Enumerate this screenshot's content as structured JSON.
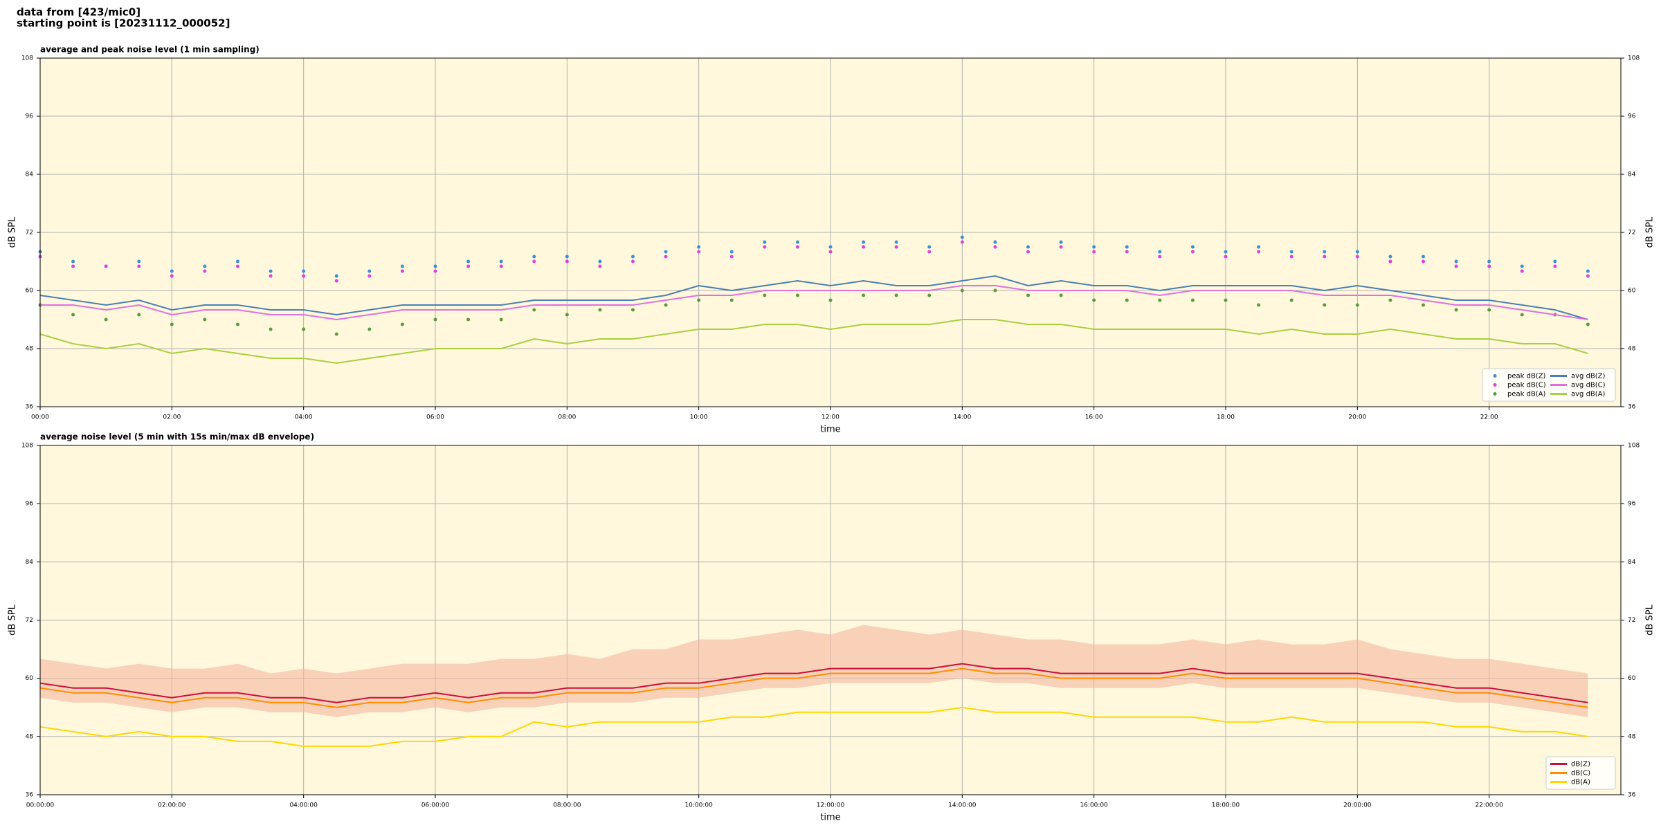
{
  "suptitle": [
    "data from [423/mic0]",
    "starting point is [20231112_000052]"
  ],
  "chart_data": [
    {
      "type": "line",
      "title": "average and peak noise level (1 min sampling)",
      "xlabel": "time",
      "ylabel": "dB SPL",
      "x": [
        0,
        0.5,
        1,
        1.5,
        2,
        2.5,
        3,
        3.5,
        4,
        4.5,
        5,
        5.5,
        6,
        6.5,
        7,
        7.5,
        8,
        8.5,
        9,
        9.5,
        10,
        10.5,
        11,
        11.5,
        12,
        12.5,
        13,
        13.5,
        14,
        14.5,
        15,
        15.5,
        16,
        16.5,
        17,
        17.5,
        18,
        18.5,
        19,
        19.5,
        20,
        20.5,
        21,
        21.5,
        22,
        22.5,
        23,
        23.5
      ],
      "xlim": [
        0,
        24
      ],
      "xticks": [
        {
          "value": 0,
          "label": "00:00"
        },
        {
          "value": 2,
          "label": "02:00"
        },
        {
          "value": 4,
          "label": "04:00"
        },
        {
          "value": 6,
          "label": "06:00"
        },
        {
          "value": 8,
          "label": "08:00"
        },
        {
          "value": 10,
          "label": "10:00"
        },
        {
          "value": 12,
          "label": "12:00"
        },
        {
          "value": 14,
          "label": "14:00"
        },
        {
          "value": 16,
          "label": "16:00"
        },
        {
          "value": 18,
          "label": "18:00"
        },
        {
          "value": 20,
          "label": "20:00"
        },
        {
          "value": 22,
          "label": "22:00"
        }
      ],
      "ylim": [
        36,
        108
      ],
      "yticks": [
        36,
        48,
        60,
        72,
        84,
        96,
        108
      ],
      "grid": true,
      "legend": "lower right",
      "legend_columns": 2,
      "series": [
        {
          "name": "peak dB(Z)",
          "color": "#3a8fd8",
          "style": "dots",
          "values": [
            68,
            66,
            65,
            66,
            64,
            65,
            66,
            64,
            64,
            63,
            64,
            65,
            65,
            66,
            66,
            67,
            67,
            66,
            67,
            68,
            69,
            68,
            70,
            70,
            69,
            70,
            70,
            69,
            71,
            70,
            69,
            70,
            69,
            69,
            68,
            69,
            68,
            69,
            68,
            68,
            68,
            67,
            67,
            66,
            66,
            65,
            66,
            64
          ]
        },
        {
          "name": "peak dB(C)",
          "color": "#e040e0",
          "style": "dots",
          "values": [
            67,
            65,
            65,
            65,
            63,
            64,
            65,
            63,
            63,
            62,
            63,
            64,
            64,
            65,
            65,
            66,
            66,
            65,
            66,
            67,
            68,
            67,
            69,
            69,
            68,
            69,
            69,
            68,
            70,
            69,
            68,
            69,
            68,
            68,
            67,
            68,
            67,
            68,
            67,
            67,
            67,
            66,
            66,
            65,
            65,
            64,
            65,
            63
          ]
        },
        {
          "name": "peak dB(A)",
          "color": "#5a9a40",
          "style": "dots",
          "values": [
            57,
            55,
            54,
            55,
            53,
            54,
            53,
            52,
            52,
            51,
            52,
            53,
            54,
            54,
            54,
            56,
            55,
            56,
            56,
            57,
            58,
            58,
            59,
            59,
            58,
            59,
            59,
            59,
            60,
            60,
            59,
            59,
            58,
            58,
            58,
            58,
            58,
            57,
            58,
            57,
            57,
            58,
            57,
            56,
            56,
            55,
            55,
            53
          ]
        },
        {
          "name": "avg dB(Z)",
          "color": "#4a7fb5",
          "style": "line",
          "values": [
            59,
            58,
            57,
            58,
            56,
            57,
            57,
            56,
            56,
            55,
            56,
            57,
            57,
            57,
            57,
            58,
            58,
            58,
            58,
            59,
            61,
            60,
            61,
            62,
            61,
            62,
            61,
            61,
            62,
            63,
            61,
            62,
            61,
            61,
            60,
            61,
            61,
            61,
            61,
            60,
            61,
            60,
            59,
            58,
            58,
            57,
            56,
            54
          ]
        },
        {
          "name": "avg dB(C)",
          "color": "#e070e0",
          "style": "line",
          "values": [
            57,
            57,
            56,
            57,
            55,
            56,
            56,
            55,
            55,
            54,
            55,
            56,
            56,
            56,
            56,
            57,
            57,
            57,
            57,
            58,
            59,
            59,
            60,
            60,
            60,
            60,
            60,
            60,
            61,
            61,
            60,
            60,
            60,
            60,
            59,
            60,
            60,
            60,
            60,
            59,
            59,
            59,
            58,
            57,
            57,
            56,
            55,
            54
          ]
        },
        {
          "name": "avg dB(A)",
          "color": "#a8d040",
          "style": "line",
          "values": [
            51,
            49,
            48,
            49,
            47,
            48,
            47,
            46,
            46,
            45,
            46,
            47,
            48,
            48,
            48,
            50,
            49,
            50,
            50,
            51,
            52,
            52,
            53,
            53,
            52,
            53,
            53,
            53,
            54,
            54,
            53,
            53,
            52,
            52,
            52,
            52,
            52,
            51,
            52,
            51,
            51,
            52,
            51,
            50,
            50,
            49,
            49,
            47
          ]
        }
      ]
    },
    {
      "type": "line",
      "title": "average noise level (5 min with 15s min/max dB envelope)",
      "xlabel": "time",
      "ylabel": "dB SPL",
      "x": [
        0,
        0.5,
        1,
        1.5,
        2,
        2.5,
        3,
        3.5,
        4,
        4.5,
        5,
        5.5,
        6,
        6.5,
        7,
        7.5,
        8,
        8.5,
        9,
        9.5,
        10,
        10.5,
        11,
        11.5,
        12,
        12.5,
        13,
        13.5,
        14,
        14.5,
        15,
        15.5,
        16,
        16.5,
        17,
        17.5,
        18,
        18.5,
        19,
        19.5,
        20,
        20.5,
        21,
        21.5,
        22,
        22.5,
        23,
        23.5
      ],
      "xlim": [
        0,
        24
      ],
      "xticks": [
        {
          "value": 0,
          "label": "00:00:00"
        },
        {
          "value": 2,
          "label": "02:00:00"
        },
        {
          "value": 4,
          "label": "04:00:00"
        },
        {
          "value": 6,
          "label": "06:00:00"
        },
        {
          "value": 8,
          "label": "08:00:00"
        },
        {
          "value": 10,
          "label": "10:00:00"
        },
        {
          "value": 12,
          "label": "12:00:00"
        },
        {
          "value": 14,
          "label": "14:00:00"
        },
        {
          "value": 16,
          "label": "16:00:00"
        },
        {
          "value": 18,
          "label": "18:00:00"
        },
        {
          "value": 20,
          "label": "20:00:00"
        },
        {
          "value": 22,
          "label": "22:00:00"
        }
      ],
      "ylim": [
        36,
        108
      ],
      "yticks": [
        36,
        48,
        60,
        72,
        84,
        96,
        108
      ],
      "grid": true,
      "legend": "lower right",
      "legend_columns": 1,
      "envelope": {
        "color": "#f4b8a0",
        "max": [
          64,
          63,
          62,
          63,
          62,
          62,
          63,
          61,
          62,
          61,
          62,
          63,
          63,
          63,
          64,
          64,
          65,
          64,
          66,
          66,
          68,
          68,
          69,
          70,
          69,
          71,
          70,
          69,
          70,
          69,
          68,
          68,
          67,
          67,
          67,
          68,
          67,
          68,
          67,
          67,
          68,
          66,
          65,
          64,
          64,
          63,
          62,
          61
        ],
        "min": [
          56,
          55,
          55,
          54,
          53,
          54,
          54,
          53,
          53,
          52,
          53,
          53,
          54,
          53,
          54,
          54,
          55,
          55,
          55,
          56,
          56,
          57,
          58,
          58,
          59,
          59,
          59,
          59,
          60,
          59,
          59,
          58,
          58,
          58,
          58,
          59,
          58,
          58,
          58,
          58,
          58,
          57,
          56,
          55,
          55,
          54,
          53,
          52
        ]
      },
      "series": [
        {
          "name": "dB(Z)",
          "color": "#c8103c",
          "style": "line",
          "values": [
            59,
            58,
            58,
            57,
            56,
            57,
            57,
            56,
            56,
            55,
            56,
            56,
            57,
            56,
            57,
            57,
            58,
            58,
            58,
            59,
            59,
            60,
            61,
            61,
            62,
            62,
            62,
            62,
            63,
            62,
            62,
            61,
            61,
            61,
            61,
            62,
            61,
            61,
            61,
            61,
            61,
            60,
            59,
            58,
            58,
            57,
            56,
            55
          ]
        },
        {
          "name": "dB(C)",
          "color": "#ff8c00",
          "style": "line",
          "values": [
            58,
            57,
            57,
            56,
            55,
            56,
            56,
            55,
            55,
            54,
            55,
            55,
            56,
            55,
            56,
            56,
            57,
            57,
            57,
            58,
            58,
            59,
            60,
            60,
            61,
            61,
            61,
            61,
            62,
            61,
            61,
            60,
            60,
            60,
            60,
            61,
            60,
            60,
            60,
            60,
            60,
            59,
            58,
            57,
            57,
            56,
            55,
            54
          ]
        },
        {
          "name": "dB(A)",
          "color": "#ffd700",
          "style": "line",
          "values": [
            50,
            49,
            48,
            49,
            48,
            48,
            47,
            47,
            46,
            46,
            46,
            47,
            47,
            48,
            48,
            51,
            50,
            51,
            51,
            51,
            51,
            52,
            52,
            53,
            53,
            53,
            53,
            53,
            54,
            53,
            53,
            53,
            52,
            52,
            52,
            52,
            51,
            51,
            52,
            51,
            51,
            51,
            51,
            50,
            50,
            49,
            49,
            48
          ]
        }
      ]
    }
  ]
}
